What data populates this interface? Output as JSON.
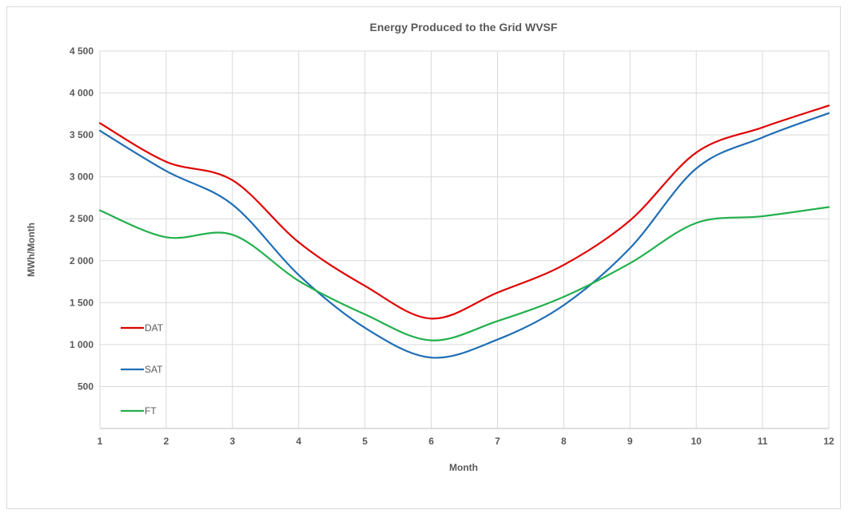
{
  "chart_data": {
    "type": "line",
    "title": "Energy Produced to the Grid WVSF",
    "xlabel": "Month",
    "ylabel": "MWh/Month",
    "x": [
      1,
      2,
      3,
      4,
      5,
      6,
      7,
      8,
      9,
      10,
      11,
      12
    ],
    "x_tick_labels": [
      "1",
      "2",
      "3",
      "4",
      "5",
      "6",
      "7",
      "8",
      "9",
      "10",
      "11",
      "12"
    ],
    "xlim": [
      1,
      12
    ],
    "ylim": [
      0,
      4500
    ],
    "y_ticks": [
      500,
      1000,
      1500,
      2000,
      2500,
      3000,
      3500,
      4000,
      4500
    ],
    "y_tick_labels": [
      "500",
      "1 000",
      "1 500",
      "2 000",
      "2 500",
      "3 000",
      "3 500",
      "4 000",
      "4 500"
    ],
    "grid": true,
    "smooth": true,
    "legend": "left",
    "series": [
      {
        "name": "DAT",
        "color": "#e00000",
        "values": [
          3640,
          3180,
          2960,
          2220,
          1700,
          1310,
          1620,
          1950,
          2480,
          3290,
          3590,
          3850
        ]
      },
      {
        "name": "SAT",
        "color": "#1f6eb5",
        "values": [
          3550,
          3070,
          2670,
          1830,
          1200,
          845,
          1060,
          1470,
          2150,
          3100,
          3470,
          3760
        ]
      },
      {
        "name": "FT",
        "color": "#21b04b",
        "values": [
          2600,
          2280,
          2310,
          1760,
          1360,
          1050,
          1280,
          1570,
          1970,
          2450,
          2530,
          2640
        ]
      }
    ]
  }
}
